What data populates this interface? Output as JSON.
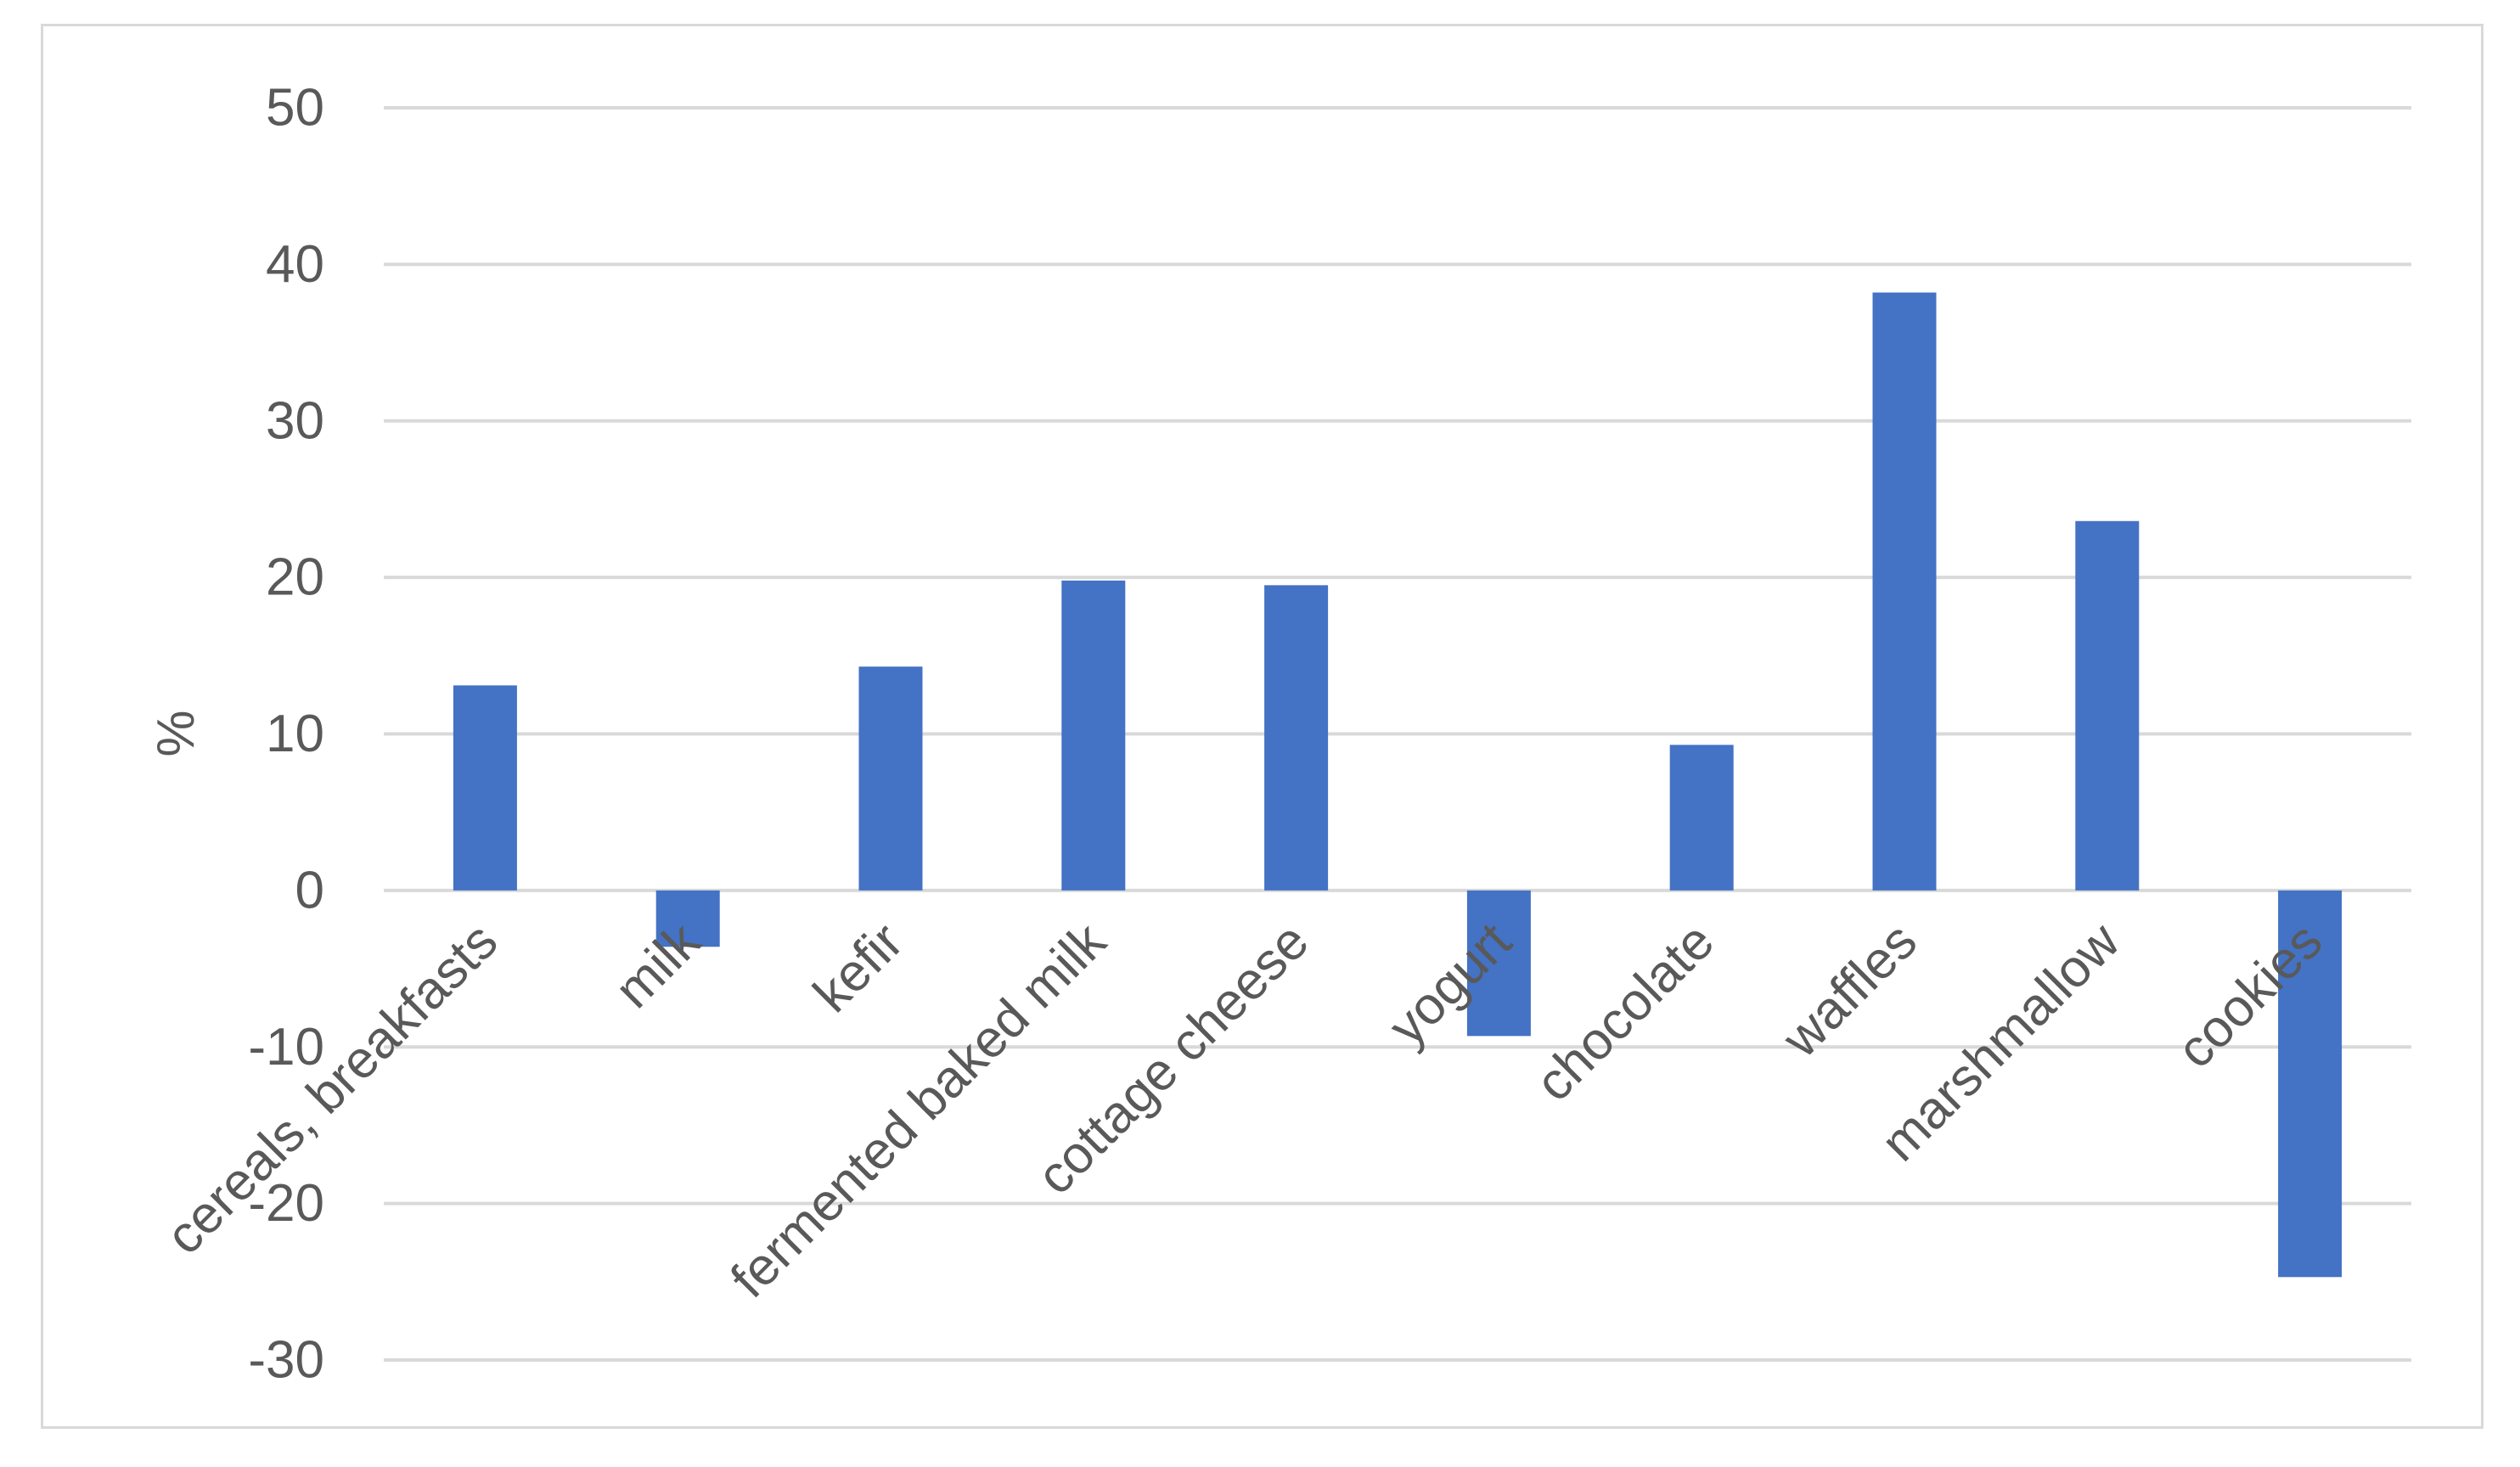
{
  "chart_data": {
    "type": "bar",
    "title": "",
    "xlabel": "",
    "ylabel": "%",
    "ylim": [
      -30,
      50
    ],
    "yticks": [
      50,
      40,
      30,
      20,
      10,
      0,
      -10,
      -20,
      -30
    ],
    "grid": true,
    "categories": [
      "cereals, breakfasts",
      "milk",
      "kefir",
      "fermented baked milk",
      "cottage cheese",
      "yogurt",
      "chocolate",
      "waffles",
      "marshmallow",
      "cookies"
    ],
    "values": [
      13.1,
      -3.6,
      14.3,
      19.8,
      19.5,
      -9.3,
      9.3,
      38.2,
      23.6,
      -24.7
    ],
    "bar_color": "#4472c4",
    "grid_color": "#d9d9d9",
    "text_color": "#595959"
  }
}
